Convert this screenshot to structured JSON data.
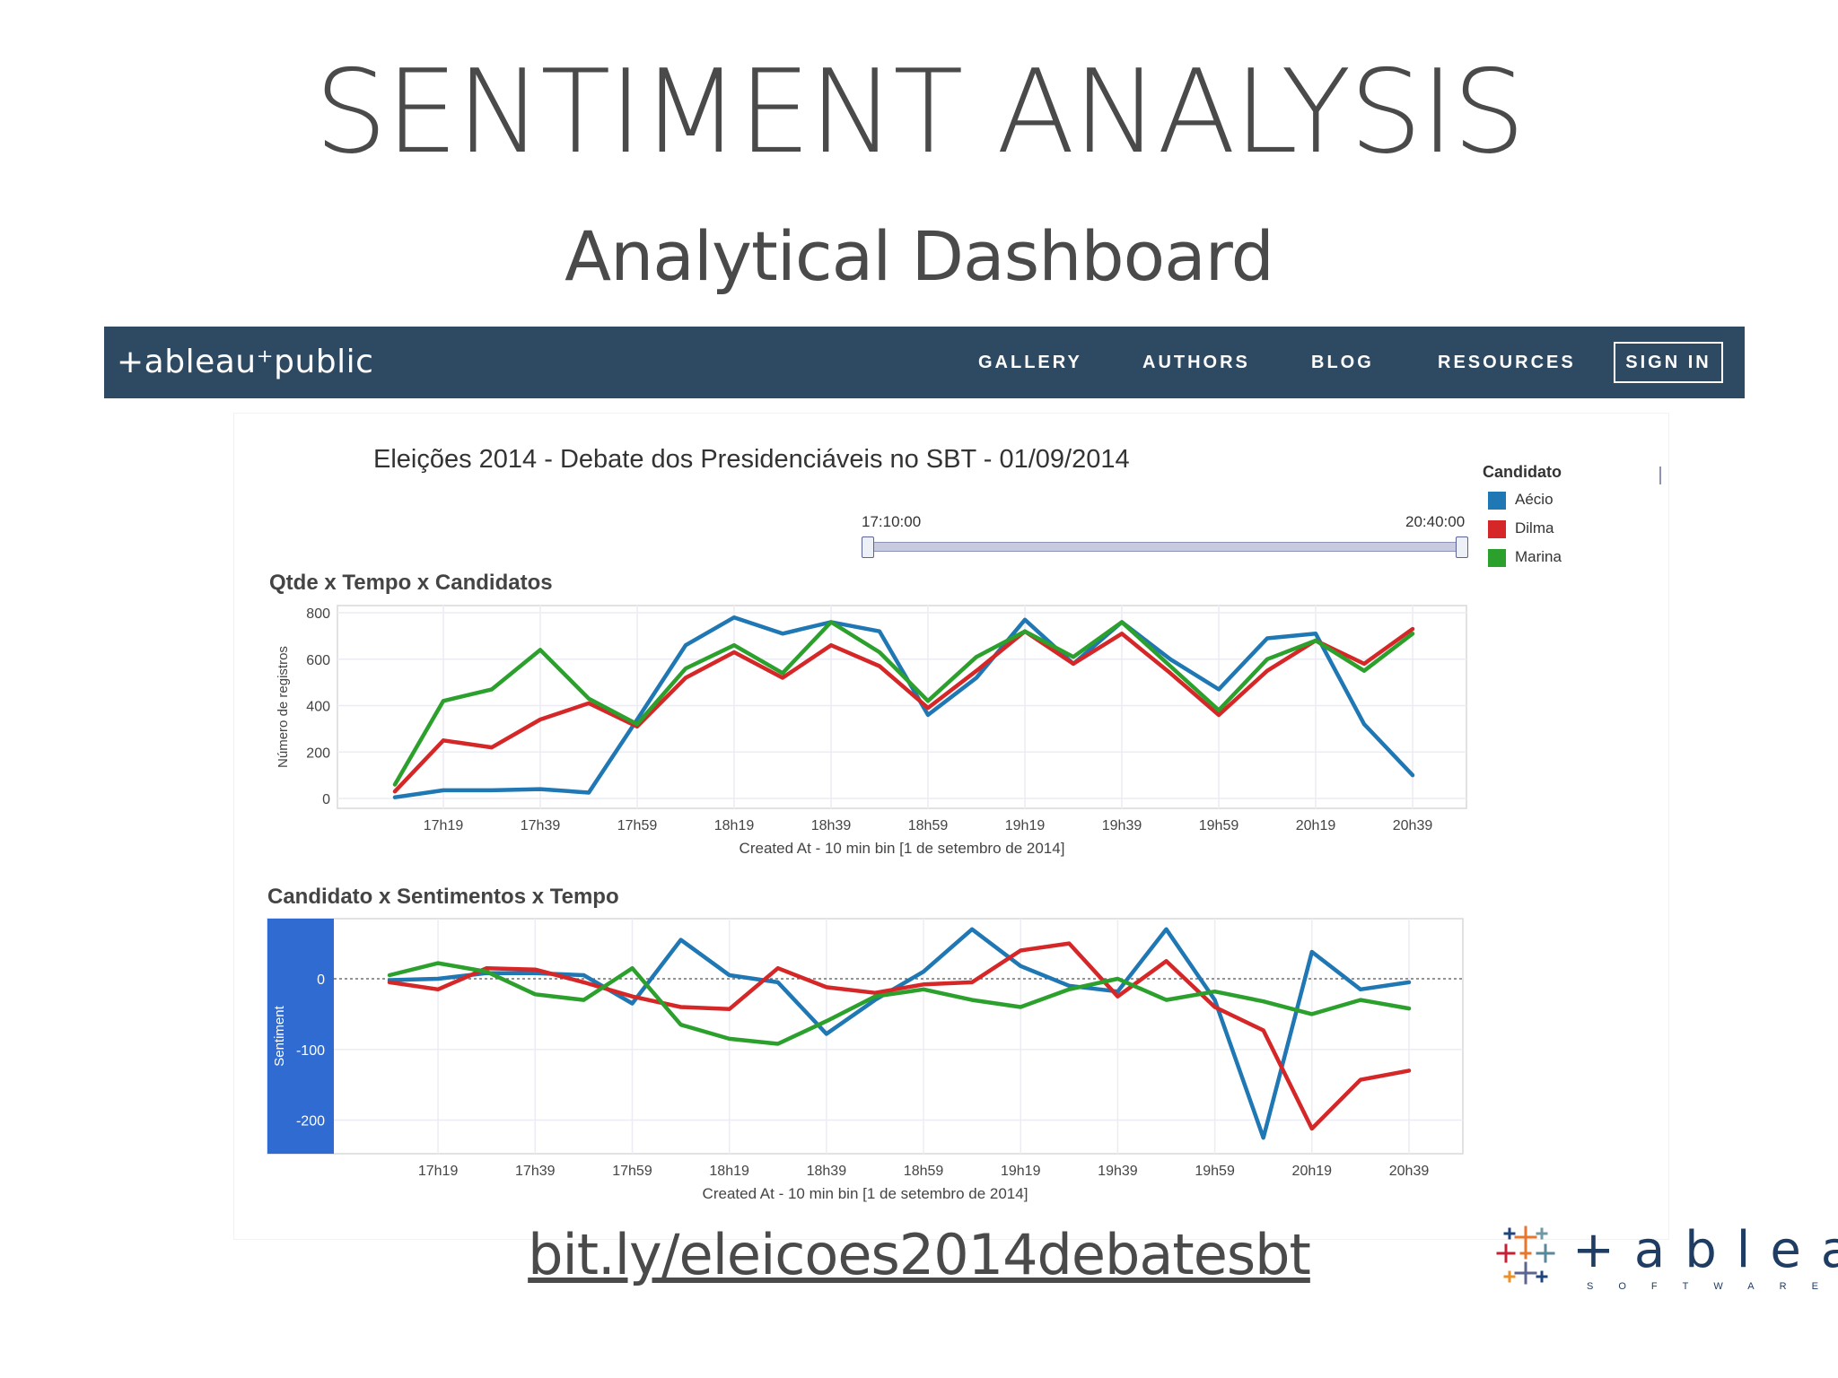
{
  "slide": {
    "title": "SENTIMENT ANALYSIS",
    "subtitle": "Analytical Dashboard",
    "url": "bit.ly/eleicoes2014debatesbt"
  },
  "tableau_public": {
    "logo_text": "+ableau⁺public",
    "nav": [
      "GALLERY",
      "AUTHORS",
      "BLOG",
      "RESOURCES"
    ],
    "sign_in": "SIGN IN",
    "bar_color": "#2e4a63"
  },
  "dashboard": {
    "title": "Eleições 2014 - Debate dos Presidenciáveis no SBT - 01/09/2014",
    "slider": {
      "start": "17:10:00",
      "end": "20:40:00"
    },
    "legend": {
      "title": "Candidato",
      "items": [
        {
          "name": "Aécio",
          "color": "#1f77b4"
        },
        {
          "name": "Dilma",
          "color": "#d62728"
        },
        {
          "name": "Marina",
          "color": "#2ca02c"
        }
      ]
    }
  },
  "chart_data": [
    {
      "type": "line",
      "title": "Qtde x Tempo x Candidatos",
      "xlabel": "Created At - 10 min bin [1 de setembro de 2014]",
      "ylabel": "Número de registros",
      "ylim": [
        0,
        800
      ],
      "yticks": [
        0,
        200,
        400,
        600,
        800
      ],
      "xticks": [
        "17h19",
        "17h39",
        "17h59",
        "18h19",
        "18h39",
        "18h59",
        "19h19",
        "19h39",
        "19h59",
        "20h19",
        "20h39"
      ],
      "x": [
        "17h09",
        "17h19",
        "17h29",
        "17h39",
        "17h49",
        "17h59",
        "18h09",
        "18h19",
        "18h29",
        "18h39",
        "18h49",
        "18h59",
        "19h09",
        "19h19",
        "19h29",
        "19h39",
        "19h49",
        "19h59",
        "20h09",
        "20h19",
        "20h29",
        "20h39"
      ],
      "series": [
        {
          "name": "Aécio",
          "color": "#1f77b4",
          "values": [
            5,
            35,
            35,
            40,
            25,
            340,
            660,
            780,
            710,
            760,
            720,
            360,
            520,
            770,
            580,
            760,
            600,
            470,
            690,
            710,
            320,
            100
          ]
        },
        {
          "name": "Dilma",
          "color": "#d62728",
          "values": [
            30,
            250,
            220,
            340,
            410,
            310,
            520,
            630,
            520,
            660,
            570,
            390,
            550,
            720,
            580,
            710,
            540,
            360,
            550,
            680,
            580,
            730
          ]
        },
        {
          "name": "Marina",
          "color": "#2ca02c",
          "values": [
            60,
            420,
            470,
            640,
            430,
            320,
            560,
            660,
            540,
            760,
            630,
            420,
            610,
            720,
            610,
            760,
            570,
            380,
            600,
            680,
            550,
            710
          ]
        }
      ]
    },
    {
      "type": "line",
      "title": "Candidato x Sentimentos x Tempo",
      "xlabel": "Created At - 10 min bin [1 de setembro de 2014]",
      "ylabel": "Sentiment",
      "ylim": [
        -245,
        85
      ],
      "yticks": [
        0,
        -100,
        -200
      ],
      "xticks": [
        "17h19",
        "17h39",
        "17h59",
        "18h19",
        "18h39",
        "18h59",
        "19h19",
        "19h39",
        "19h59",
        "20h19",
        "20h39"
      ],
      "x": [
        "17h09",
        "17h19",
        "17h29",
        "17h39",
        "17h49",
        "17h59",
        "18h09",
        "18h19",
        "18h29",
        "18h39",
        "18h49",
        "18h59",
        "19h09",
        "19h19",
        "19h29",
        "19h39",
        "19h49",
        "19h59",
        "20h09",
        "20h19",
        "20h29",
        "20h39"
      ],
      "series": [
        {
          "name": "Aécio",
          "color": "#1f77b4",
          "values": [
            -2,
            0,
            8,
            8,
            5,
            -35,
            55,
            5,
            -5,
            -78,
            -30,
            10,
            70,
            18,
            -10,
            -18,
            70,
            -30,
            -225,
            38,
            -15,
            -5
          ]
        },
        {
          "name": "Dilma",
          "color": "#d62728",
          "values": [
            -5,
            -15,
            15,
            13,
            -5,
            -25,
            -40,
            -43,
            15,
            -12,
            -20,
            -8,
            -5,
            40,
            50,
            -25,
            25,
            -40,
            -73,
            -212,
            -143,
            -130
          ]
        },
        {
          "name": "Marina",
          "color": "#2ca02c",
          "values": [
            5,
            22,
            10,
            -22,
            -30,
            15,
            -65,
            -85,
            -92,
            -60,
            -25,
            -15,
            -30,
            -40,
            -15,
            0,
            -30,
            -18,
            -32,
            -50,
            -30,
            -42
          ]
        }
      ]
    }
  ]
}
